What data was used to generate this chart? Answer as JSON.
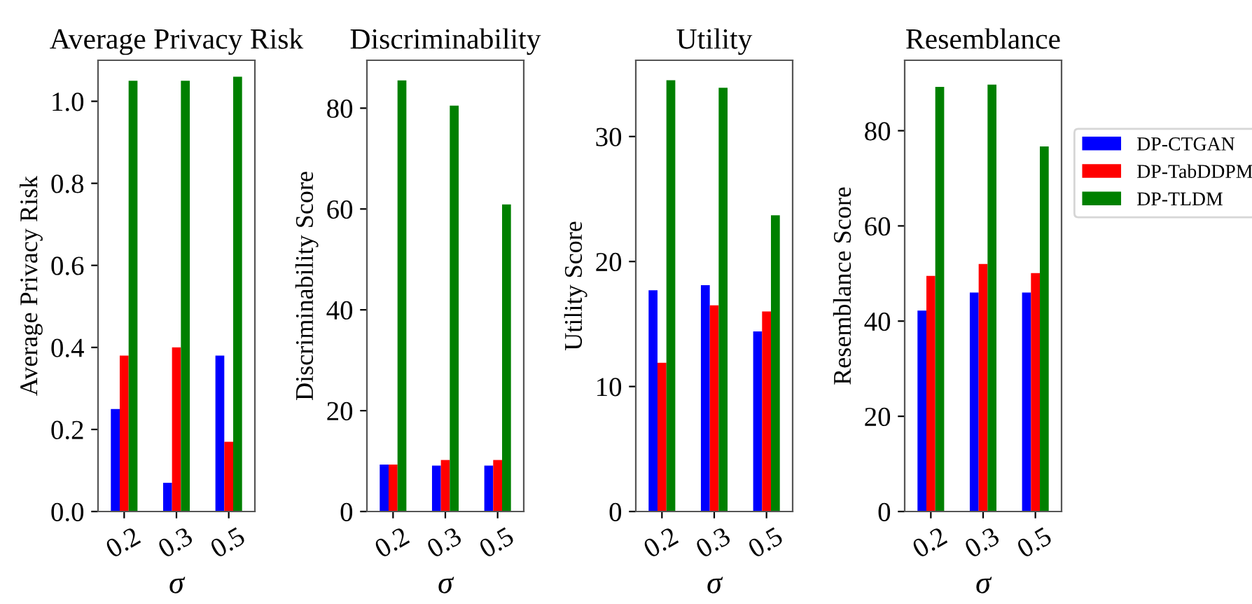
{
  "chart_data": [
    {
      "type": "bar",
      "title": "Average Privacy Risk",
      "xlabel": "σ",
      "ylabel": "Average Privacy Risk",
      "categories": [
        "0.2",
        "0.3",
        "0.5"
      ],
      "ylim": [
        0,
        1.1
      ],
      "yticks": [
        {
          "value": 0,
          "label": "0.0"
        },
        0.2,
        0.4,
        0.6,
        0.8,
        {
          "value": 1,
          "label": "1.0"
        }
      ],
      "grid": false,
      "series": [
        {
          "color": "#0000ff",
          "values": [
            0.25,
            0.07,
            0.38
          ]
        },
        {
          "color": "#ff0000",
          "values": [
            0.38,
            0.4,
            0.17
          ]
        },
        {
          "color": "#008000",
          "values": [
            1.05,
            1.05,
            1.06
          ]
        }
      ]
    },
    {
      "type": "bar",
      "title": "Discriminability",
      "xlabel": "σ",
      "ylabel": "Discriminability Score",
      "categories": [
        "0.2",
        "0.3",
        "0.5"
      ],
      "ylim": [
        0,
        89.5
      ],
      "yticks": [
        0,
        20,
        40,
        60,
        80
      ],
      "grid": false,
      "series": [
        {
          "color": "#0000ff",
          "values": [
            9.3,
            9.1,
            9.1
          ]
        },
        {
          "color": "#ff0000",
          "values": [
            9.3,
            10.2,
            10.2
          ]
        },
        {
          "color": "#008000",
          "values": [
            85.5,
            80.5,
            60.9
          ]
        }
      ]
    },
    {
      "type": "bar",
      "title": "Utility",
      "xlabel": "σ",
      "ylabel": "Utility Score",
      "categories": [
        "0.2",
        "0.3",
        "0.5"
      ],
      "ylim": [
        0,
        36.1
      ],
      "yticks": [
        0,
        10,
        20,
        30
      ],
      "grid": false,
      "series": [
        {
          "color": "#0000ff",
          "values": [
            17.7,
            18.1,
            14.4
          ]
        },
        {
          "color": "#ff0000",
          "values": [
            11.9,
            16.5,
            16.0
          ]
        },
        {
          "color": "#008000",
          "values": [
            34.5,
            33.9,
            23.7
          ]
        }
      ]
    },
    {
      "type": "bar",
      "title": "Resemblance",
      "xlabel": "σ",
      "ylabel": "Resemblance Score",
      "categories": [
        "0.2",
        "0.3",
        "0.5"
      ],
      "ylim": [
        0,
        94.8
      ],
      "yticks": [
        0,
        20,
        40,
        60,
        80
      ],
      "grid": false,
      "legend": "right",
      "series": [
        {
          "name": "DP-CTGAN",
          "color": "#0000ff",
          "values": [
            42.2,
            46.0,
            46.0
          ]
        },
        {
          "name": "DP-TabDDPM",
          "color": "#ff0000",
          "values": [
            49.5,
            52.0,
            50.1
          ]
        },
        {
          "name": "DP-TLDM",
          "color": "#008000",
          "values": [
            89.2,
            89.7,
            76.7
          ]
        }
      ]
    }
  ]
}
